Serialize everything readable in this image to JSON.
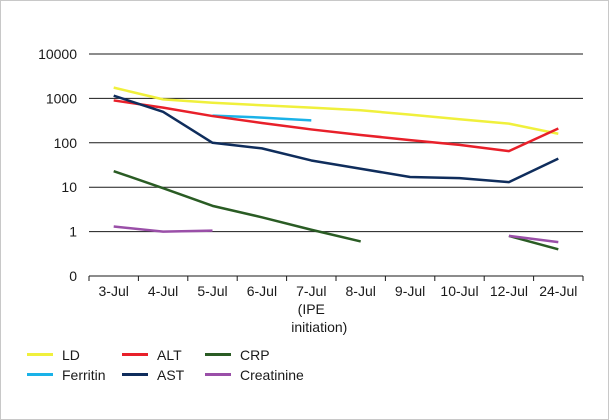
{
  "chart_data": {
    "type": "line",
    "yscale": "log",
    "ylim": [
      0.1,
      10000
    ],
    "y_ticks": [
      {
        "value": 10000,
        "label": "10000"
      },
      {
        "value": 1000,
        "label": "1000"
      },
      {
        "value": 100,
        "label": "100"
      },
      {
        "value": 10,
        "label": "10"
      },
      {
        "value": 1,
        "label": "1"
      },
      {
        "value": 0.1,
        "label": "0"
      }
    ],
    "categories": [
      "3-Jul",
      "4-Jul",
      "5-Jul",
      "6-Jul",
      "7-Jul",
      "8-Jul",
      "9-Jul",
      "10-Jul",
      "12-Jul",
      "24-Jul"
    ],
    "category_sublabels": {
      "4": [
        "(IPE",
        "initiation)"
      ]
    },
    "grid": "horizontal",
    "legend_position": "bottom-left",
    "series": [
      {
        "name": "LD",
        "color": "#f0f03c",
        "values": [
          1750,
          950,
          800,
          700,
          620,
          540,
          430,
          340,
          270,
          160
        ]
      },
      {
        "name": "Ferritin",
        "color": "#1ab2e8",
        "values": [
          850,
          null,
          410,
          370,
          320,
          null,
          null,
          null,
          null,
          null
        ]
      },
      {
        "name": "ALT",
        "color": "#e8202a",
        "values": [
          900,
          620,
          400,
          280,
          200,
          150,
          115,
          90,
          65,
          210
        ]
      },
      {
        "name": "AST",
        "color": "#0f2d5c",
        "values": [
          1150,
          500,
          100,
          75,
          40,
          26,
          17,
          16,
          13,
          44
        ]
      },
      {
        "name": "CRP",
        "color": "#2a5c24",
        "values": [
          23,
          9.5,
          3.8,
          2.1,
          1.1,
          0.6,
          null,
          null,
          0.8,
          0.4
        ]
      },
      {
        "name": "Creatinine",
        "color": "#9a4fa8",
        "values": [
          1.3,
          1.0,
          1.05,
          null,
          null,
          null,
          null,
          null,
          0.8,
          0.58
        ]
      }
    ]
  }
}
